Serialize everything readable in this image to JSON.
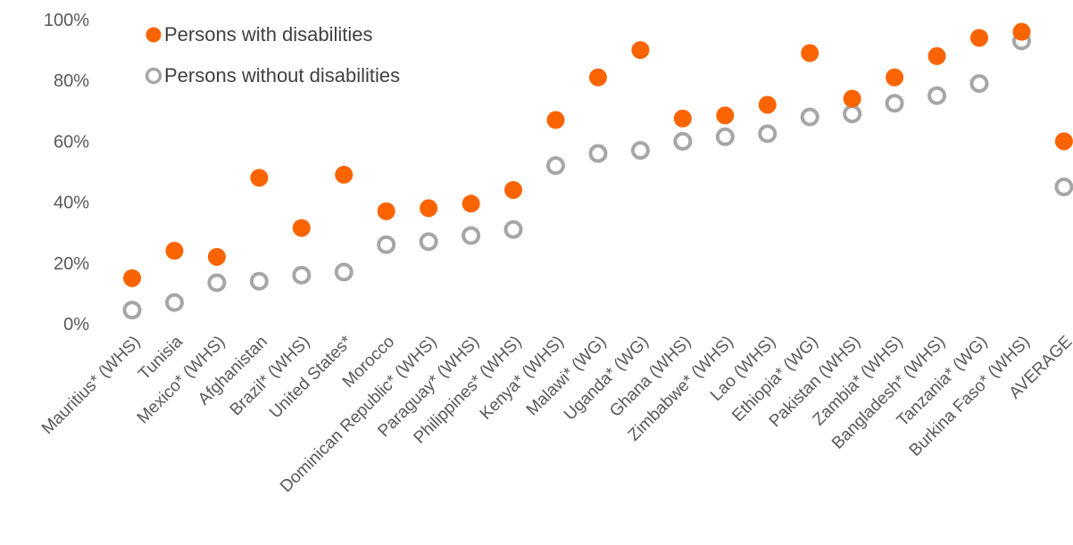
{
  "chart_data": {
    "type": "scatter",
    "title": "",
    "xlabel": "",
    "ylabel": "",
    "ylim": [
      0,
      100
    ],
    "y_ticks": [
      "0%",
      "20%",
      "40%",
      "60%",
      "80%",
      "100%"
    ],
    "grid": false,
    "legend_position": "top-left",
    "categories": [
      "Mauritius* (WHS)",
      "Tunisia",
      "Mexico* (WHS)",
      "Afghanistan",
      "Brazil* (WHS)",
      "United States*",
      "Morocco",
      "Dominican Republic* (WHS)",
      "Paraguay* (WHS)",
      "Philippines* (WHS)",
      "Kenya* (WHS)",
      "Malawi* (WG)",
      "Uganda* (WG)",
      "Ghana (WHS)",
      "Zimbabwe* (WHS)",
      "Lao (WHS)",
      "Ethiopia* (WG)",
      "Pakistan (WHS)",
      "Zambia* (WHS)",
      "Bangladesh* (WHS)",
      "Tanzania* (WG)",
      "Burkina Faso* (WHS)",
      "AVERAGE"
    ],
    "series": [
      {
        "name": "Persons with disabilities",
        "color": "#fa6400",
        "marker": "filled-circle",
        "values": [
          15,
          24,
          22,
          48,
          31.5,
          49,
          37,
          38,
          39.5,
          44,
          67,
          81,
          90,
          67.5,
          68.5,
          72,
          89,
          74,
          81,
          88,
          94,
          96,
          60
        ]
      },
      {
        "name": "Persons without disabilities",
        "color": "#a6a6a6",
        "marker": "hollow-circle",
        "values": [
          4.5,
          7,
          13.5,
          14,
          16,
          17,
          26,
          27,
          29,
          31,
          52,
          56,
          57,
          60,
          61.5,
          62.5,
          68,
          69,
          72.5,
          75,
          79,
          93,
          45
        ]
      }
    ]
  }
}
